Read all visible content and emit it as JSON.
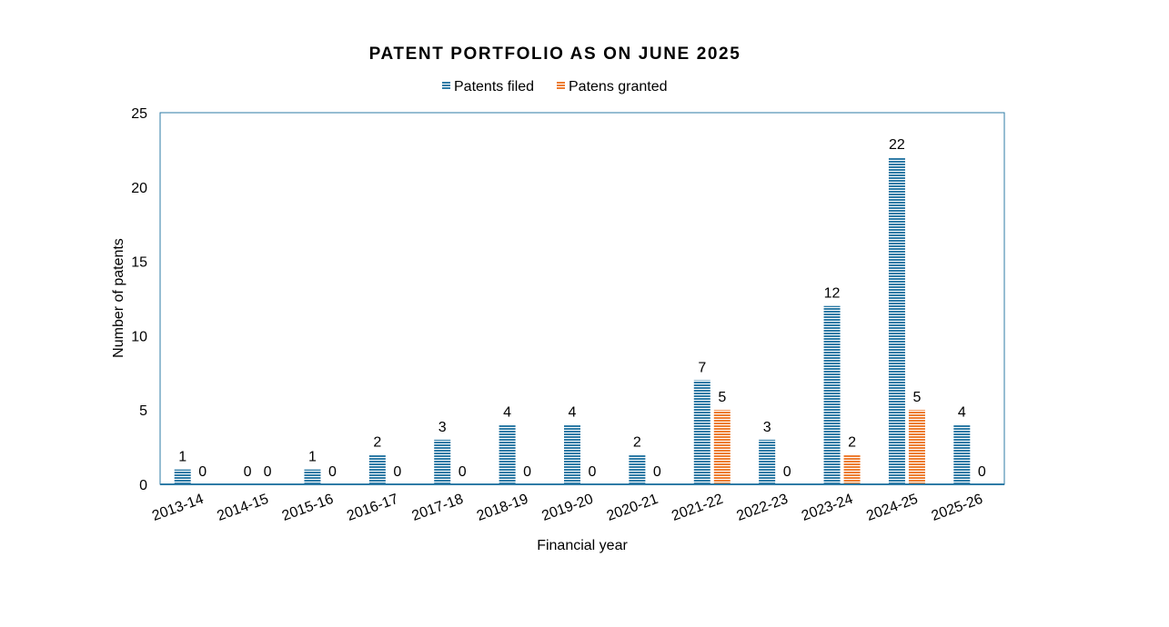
{
  "chart_data": {
    "type": "bar",
    "title": "PATENT PORTFOLIO AS ON JUNE 2025",
    "xlabel": "Financial year",
    "ylabel": "Number of patents",
    "ylim": [
      0,
      25
    ],
    "yticks": [
      "0",
      "5",
      "10",
      "15",
      "20",
      "25"
    ],
    "grid": false,
    "legend_position": "top-center",
    "categories": [
      "2013-14",
      "2014-15",
      "2015-16",
      "2016-17",
      "2017-18",
      "2018-19",
      "2019-20",
      "2020-21",
      "2021-22",
      "2022-23",
      "2023-24",
      "2024-25",
      "2025-26"
    ],
    "series": [
      {
        "name": "Patents filed",
        "color": "#2e7ba6",
        "values": [
          1,
          0,
          1,
          2,
          3,
          4,
          4,
          2,
          7,
          3,
          12,
          22,
          4
        ]
      },
      {
        "name": "Patens granted",
        "color": "#ed7d31",
        "values": [
          0,
          0,
          0,
          0,
          0,
          0,
          0,
          0,
          5,
          0,
          2,
          5,
          0
        ]
      }
    ]
  }
}
